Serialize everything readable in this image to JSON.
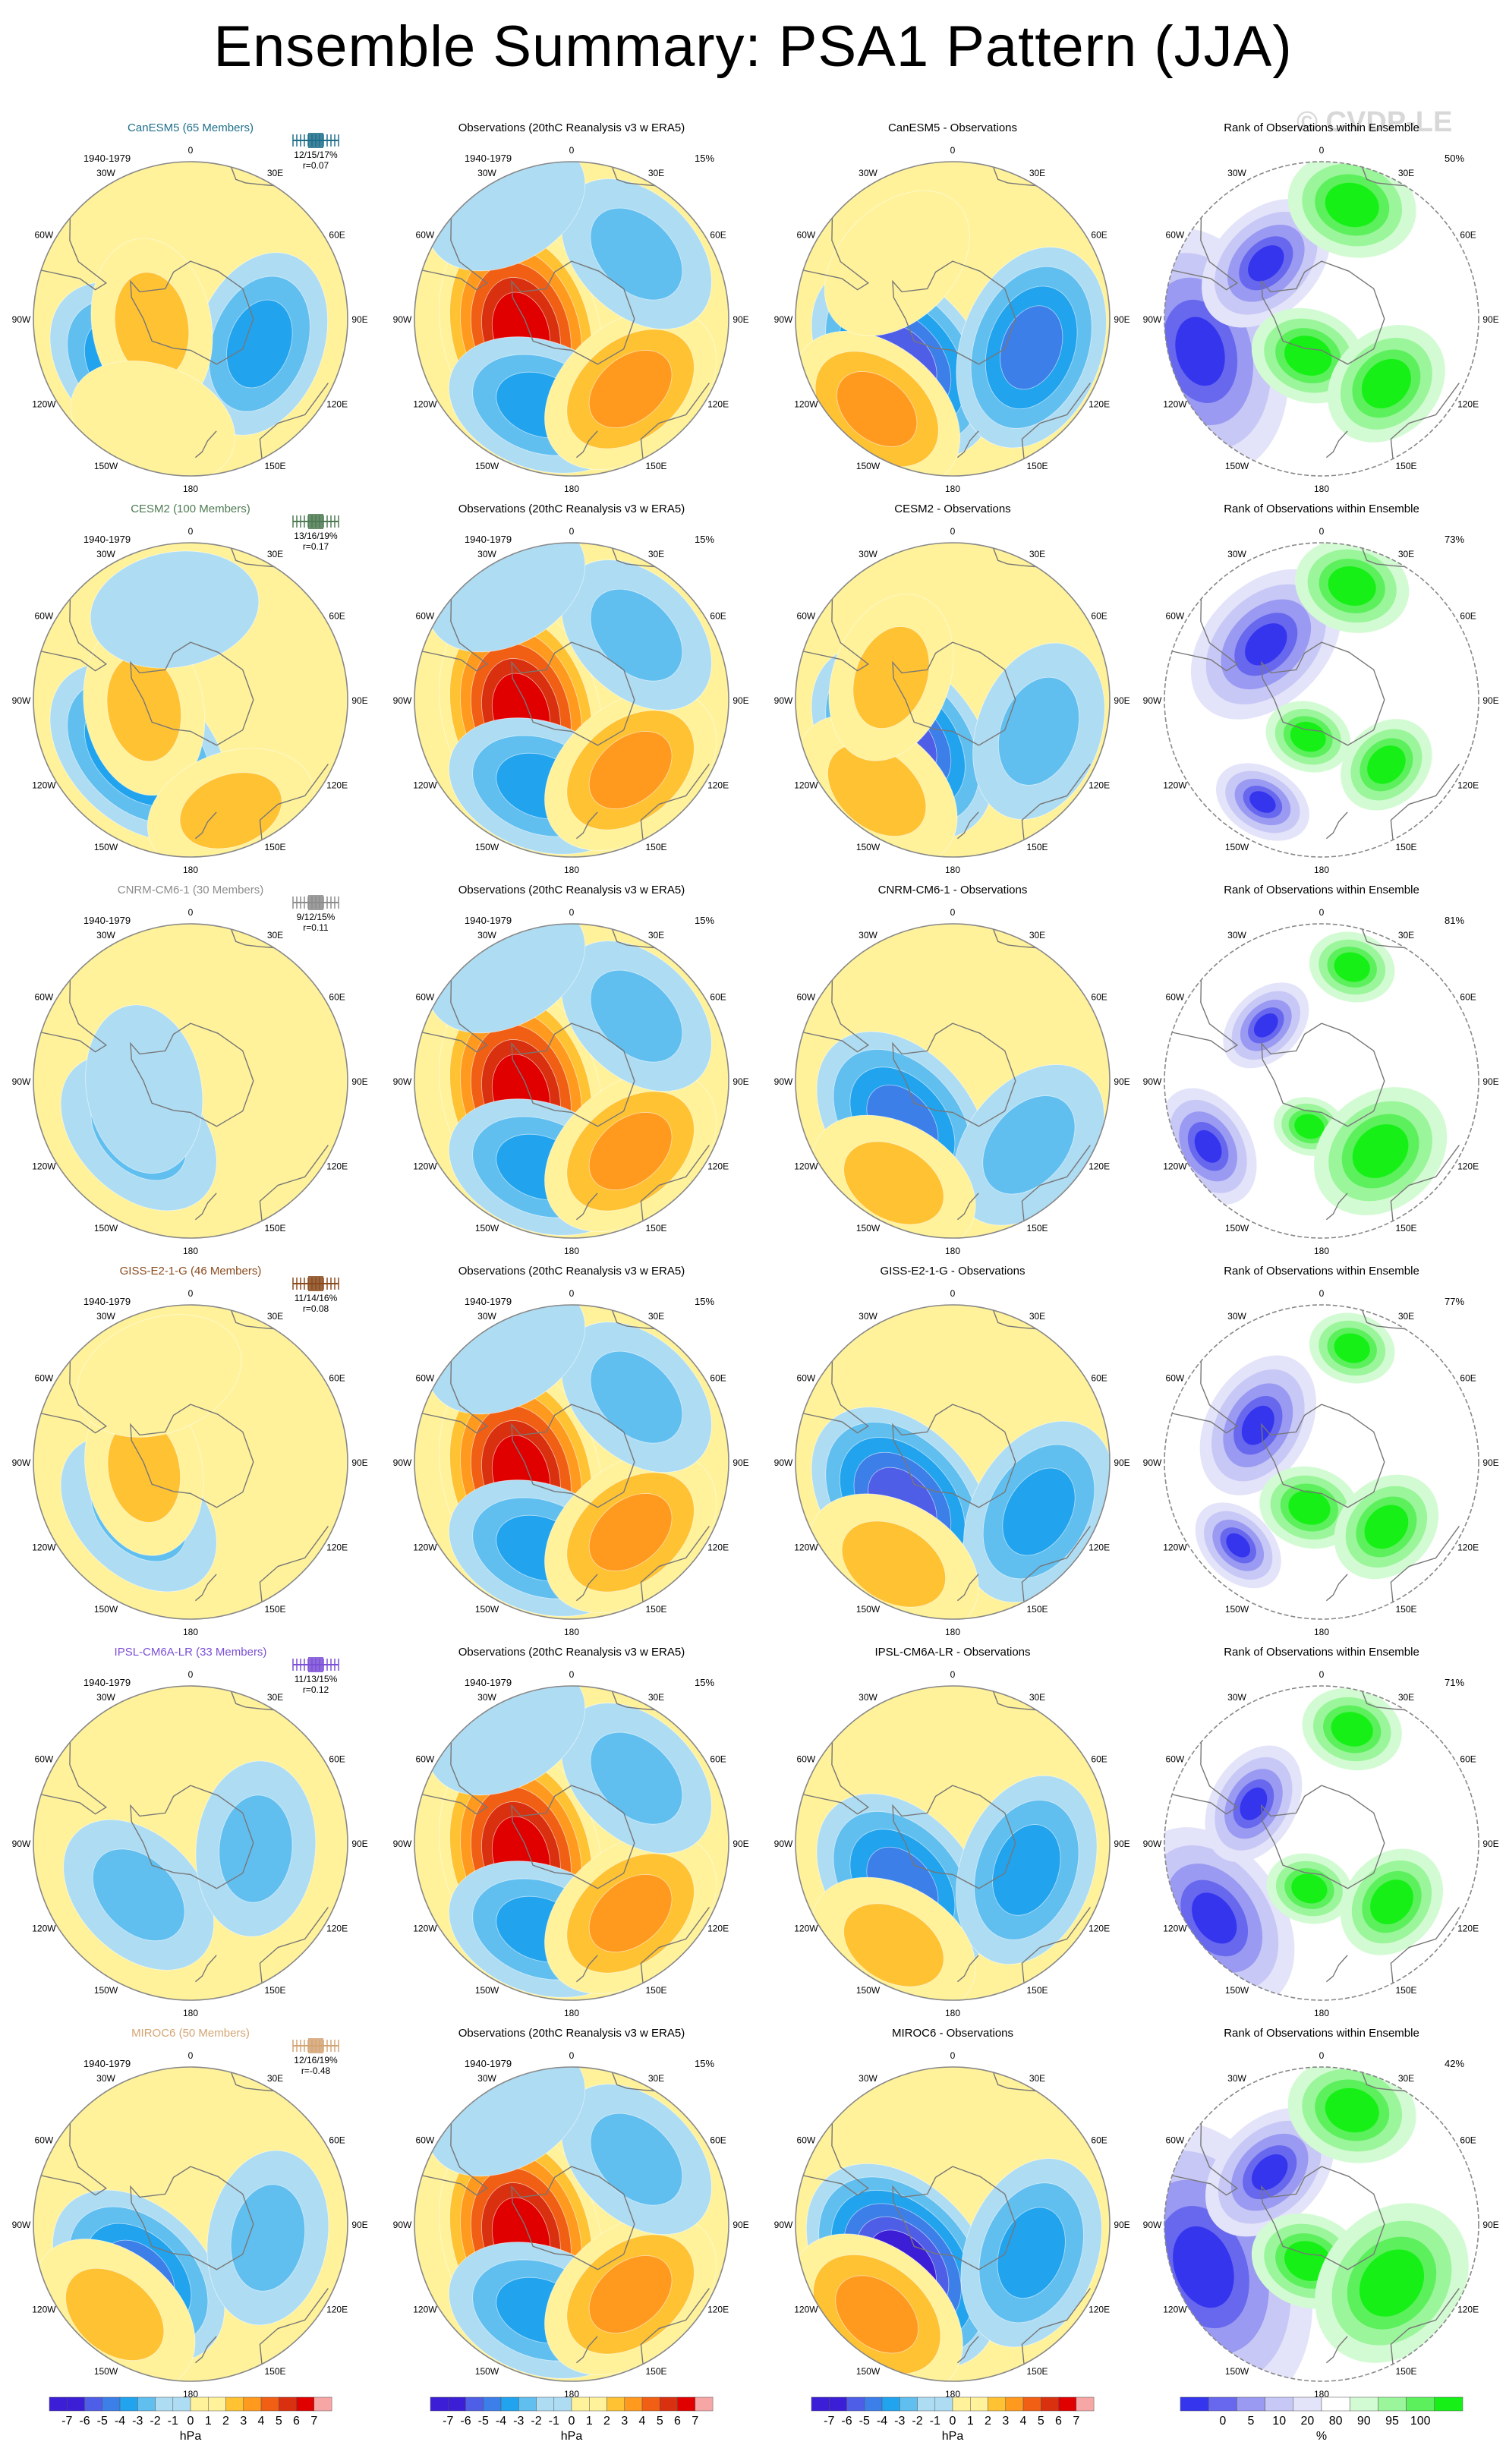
{
  "title": "Ensemble Summary: PSA1 Pattern (JJA)",
  "watermark": "© CVDP-LE",
  "common": {
    "period": "1940-1979",
    "obs_title": "Observations (20thC Reanalysis v3 w ERA5)",
    "obs_pct": "15%",
    "rank_title": "Rank of Observations within Ensemble",
    "diff_suffix": " - Observations",
    "lon_labels": {
      "n": "0",
      "ne30": "30E",
      "ne60": "60E",
      "e": "90E",
      "se120": "120E",
      "se150": "150E",
      "s": "180",
      "sw150": "150W",
      "sw120": "120W",
      "w": "90W",
      "nw60": "60W",
      "nw30": "30W"
    }
  },
  "colors": {
    "model_hues": [
      "#1f6f8b",
      "#4e7a52",
      "#8c8c8c",
      "#8a4a1d",
      "#7b4fd6",
      "#d4a574"
    ],
    "pos": [
      "#fff29a",
      "#ffc233",
      "#ff9a1f",
      "#f05f14",
      "#d9300f",
      "#e00000"
    ],
    "neg": [
      "#aedcf3",
      "#61bff0",
      "#21a3ee",
      "#3d7fe8",
      "#4f5ee6",
      "#3b1ed6"
    ],
    "rank_low": [
      "#3535ee",
      "#6868ee",
      "#9a9af2",
      "#c8c8f6",
      "#e3e3fa"
    ],
    "rank_high": [
      "#d3fbd3",
      "#9bf59b",
      "#5cf05c",
      "#16f016"
    ],
    "land": "#777777"
  },
  "chart_data": {
    "type": "multi-panel polar contour maps",
    "rows": [
      {
        "model": "CanESM5",
        "members": "65 Members",
        "percentiles": "12/15/17%",
        "r": "r=0.07",
        "rank_pct": "50%",
        "diff_title": "CanESM5 - Observations",
        "ens": [
          {
            "lon": -135,
            "lat": -62,
            "v": -4
          },
          {
            "lon": 110,
            "lat": -62,
            "v": -2.5
          },
          {
            "lon": -100,
            "lat": -75,
            "v": 1.5
          },
          {
            "lon": -160,
            "lat": -48,
            "v": 1
          }
        ],
        "diff": [
          {
            "lon": -130,
            "lat": -65,
            "v": -5
          },
          {
            "lon": 110,
            "lat": -58,
            "v": -4
          },
          {
            "lon": -140,
            "lat": -45,
            "v": 2.5
          },
          {
            "lon": -45,
            "lat": -60,
            "v": 1
          }
        ],
        "rank": {
          "blue": [
            {
              "lon": -105,
              "lat": -42,
              "s": 1.0
            },
            {
              "lon": -45,
              "lat": -60,
              "s": 0.6
            }
          ],
          "green": [
            {
              "lon": 15,
              "lat": -45,
              "s": 0.9
            },
            {
              "lon": -160,
              "lat": -75,
              "s": 0.8
            },
            {
              "lon": 135,
              "lat": -55,
              "s": 0.9
            }
          ]
        }
      },
      {
        "model": "CESM2",
        "members": "100 Members",
        "percentiles": "13/16/19%",
        "r": "r=0.17",
        "rank_pct": "73%",
        "diff_title": "CESM2 - Observations",
        "ens": [
          {
            "lon": -135,
            "lat": -62,
            "v": -4
          },
          {
            "lon": -100,
            "lat": -72,
            "v": 1.5
          },
          {
            "lon": 160,
            "lat": -45,
            "v": 1.2
          },
          {
            "lon": -10,
            "lat": -55,
            "v": -1
          }
        ],
        "diff": [
          {
            "lon": -130,
            "lat": -65,
            "v": -5
          },
          {
            "lon": 110,
            "lat": -55,
            "v": -2
          },
          {
            "lon": -140,
            "lat": -45,
            "v": 2
          },
          {
            "lon": -70,
            "lat": -65,
            "v": 1.2
          }
        ],
        "rank": {
          "blue": [
            {
              "lon": -45,
              "lat": -60,
              "s": 0.7
            },
            {
              "lon": -150,
              "lat": -45,
              "s": 0.4
            }
          ],
          "green": [
            {
              "lon": 15,
              "lat": -45,
              "s": 0.8
            },
            {
              "lon": -160,
              "lat": -75,
              "s": 0.6
            },
            {
              "lon": 135,
              "lat": -55,
              "s": 0.7
            }
          ]
        }
      },
      {
        "model": "CNRM-CM6-1",
        "members": "30 Members",
        "percentiles": "9/12/15%",
        "r": "r=0.11",
        "rank_pct": "81%",
        "diff_title": "CNRM-CM6-1 - Observations",
        "ens": [
          {
            "lon": -135,
            "lat": -62,
            "v": -2
          },
          {
            "lon": -100,
            "lat": -72,
            "v": -1
          }
        ],
        "diff": [
          {
            "lon": -130,
            "lat": -65,
            "v": -4
          },
          {
            "lon": 130,
            "lat": -52,
            "v": -2
          },
          {
            "lon": -150,
            "lat": -45,
            "v": 1.5
          }
        ],
        "rank": {
          "blue": [
            {
              "lon": -120,
              "lat": -40,
              "s": 0.5
            },
            {
              "lon": -45,
              "lat": -60,
              "s": 0.4
            }
          ],
          "green": [
            {
              "lon": 15,
              "lat": -45,
              "s": 0.6
            },
            {
              "lon": -165,
              "lat": -72,
              "s": 0.5
            },
            {
              "lon": 140,
              "lat": -55,
              "s": 1.0
            }
          ]
        }
      },
      {
        "model": "GISS-E2-1-G",
        "members": "46 Members",
        "percentiles": "11/14/16%",
        "r": "r=0.08",
        "rank_pct": "77%",
        "diff_title": "GISS-E2-1-G - Observations",
        "ens": [
          {
            "lon": -135,
            "lat": -62,
            "v": -2
          },
          {
            "lon": -100,
            "lat": -72,
            "v": 1.2
          },
          {
            "lon": -20,
            "lat": -55,
            "v": 1
          }
        ],
        "diff": [
          {
            "lon": -130,
            "lat": -65,
            "v": -5
          },
          {
            "lon": 120,
            "lat": -52,
            "v": -3
          },
          {
            "lon": -150,
            "lat": -45,
            "v": 2
          }
        ],
        "rank": {
          "blue": [
            {
              "lon": -60,
              "lat": -62,
              "s": 0.6
            },
            {
              "lon": -135,
              "lat": -45,
              "s": 0.4
            }
          ],
          "green": [
            {
              "lon": 15,
              "lat": -45,
              "s": 0.6
            },
            {
              "lon": -165,
              "lat": -72,
              "s": 0.7
            },
            {
              "lon": 135,
              "lat": -55,
              "s": 0.8
            }
          ]
        }
      },
      {
        "model": "IPSL-CM6A-LR",
        "members": "33 Members",
        "percentiles": "11/13/15%",
        "r": "r=0.12",
        "rank_pct": "71%",
        "diff_title": "IPSL-CM6A-LR - Observations",
        "ens": [
          {
            "lon": -135,
            "lat": -62,
            "v": -1.5
          },
          {
            "lon": 95,
            "lat": -65,
            "v": -1.5
          }
        ],
        "diff": [
          {
            "lon": -130,
            "lat": -65,
            "v": -4
          },
          {
            "lon": 110,
            "lat": -60,
            "v": -3
          },
          {
            "lon": -150,
            "lat": -45,
            "v": 1.5
          }
        ],
        "rank": {
          "blue": [
            {
              "lon": -125,
              "lat": -40,
              "s": 0.8
            },
            {
              "lon": -60,
              "lat": -60,
              "s": 0.5
            }
          ],
          "green": [
            {
              "lon": 15,
              "lat": -45,
              "s": 0.7
            },
            {
              "lon": -165,
              "lat": -72,
              "s": 0.6
            },
            {
              "lon": 130,
              "lat": -55,
              "s": 0.8
            }
          ]
        }
      },
      {
        "model": "MIROC6",
        "members": "50 Members",
        "percentiles": "12/16/19%",
        "r": "r=-0.48",
        "rank_pct": "42%",
        "diff_title": "MIROC6 - Observations",
        "ens": [
          {
            "lon": -135,
            "lat": -62,
            "v": -3.5
          },
          {
            "lon": -140,
            "lat": -45,
            "v": 2
          },
          {
            "lon": 100,
            "lat": -60,
            "v": -1.5
          }
        ],
        "diff": [
          {
            "lon": -130,
            "lat": -65,
            "v": -6
          },
          {
            "lon": -140,
            "lat": -45,
            "v": 3
          },
          {
            "lon": 110,
            "lat": -58,
            "v": -3
          }
        ],
        "rank": {
          "blue": [
            {
              "lon": -110,
              "lat": -42,
              "s": 1.2
            },
            {
              "lon": -45,
              "lat": -62,
              "s": 0.6
            }
          ],
          "green": [
            {
              "lon": 15,
              "lat": -45,
              "s": 0.9
            },
            {
              "lon": -160,
              "lat": -75,
              "s": 0.8
            },
            {
              "lon": 130,
              "lat": -55,
              "s": 1.2
            }
          ]
        }
      }
    ],
    "obs_field": [
      {
        "lon": -105,
        "lat": -70,
        "v": 6
      },
      {
        "lon": -160,
        "lat": -55,
        "v": -2.5
      },
      {
        "lon": 140,
        "lat": -55,
        "v": 3
      },
      {
        "lon": 45,
        "lat": -55,
        "v": -1.5
      },
      {
        "lon": -30,
        "lat": -40,
        "v": -1
      }
    ],
    "colorbars": [
      {
        "unit": "hPa",
        "ticks": [
          "-7",
          "-6",
          "-5",
          "-4",
          "-3",
          "-2",
          "-1",
          "0",
          "1",
          "2",
          "3",
          "4",
          "5",
          "6",
          "7"
        ]
      },
      {
        "unit": "hPa",
        "ticks": [
          "-7",
          "-6",
          "-5",
          "-4",
          "-3",
          "-2",
          "-1",
          "0",
          "1",
          "2",
          "3",
          "4",
          "5",
          "6",
          "7"
        ]
      },
      {
        "unit": "hPa",
        "ticks": [
          "-7",
          "-6",
          "-5",
          "-4",
          "-3",
          "-2",
          "-1",
          "0",
          "1",
          "2",
          "3",
          "4",
          "5",
          "6",
          "7"
        ]
      },
      {
        "unit": "%",
        "ticks": [
          "0",
          "5",
          "10",
          "20",
          "80",
          "90",
          "95",
          "100"
        ]
      }
    ]
  }
}
